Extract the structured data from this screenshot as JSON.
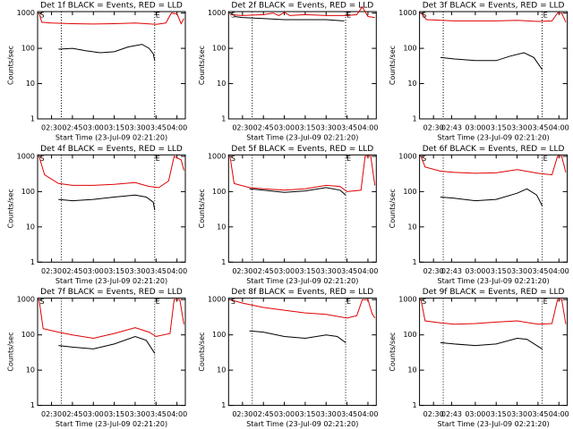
{
  "chart_data": [
    {
      "type": "line",
      "title": "Det 1f BLACK = Events, RED = LLD",
      "ylabel": "Counts/sec",
      "xlabel": "Start Time (23-Jul-09 02:21:20)",
      "log_y": true,
      "ylim": [
        1,
        1100
      ],
      "yticks": [
        1,
        10,
        100,
        1000
      ],
      "xlim": [
        "02:20",
        "04:06"
      ],
      "xticks": [
        "02:30",
        "02:45",
        "03:00",
        "03:15",
        "03:30",
        "03:45",
        "04:00"
      ],
      "vlines": [
        "02:37",
        "03:44"
      ],
      "annotations": [
        {
          "text": "S",
          "x": "02:21"
        },
        {
          "text": "E",
          "x": "03:44"
        }
      ],
      "series": [
        {
          "color": "#e00000",
          "x": [
            "02:21",
            "02:23",
            "02:30",
            "02:45",
            "03:00",
            "03:15",
            "03:30",
            "03:45",
            "03:52",
            "03:56",
            "04:00",
            "04:03",
            "04:05"
          ],
          "values": [
            1000,
            550,
            520,
            500,
            490,
            500,
            520,
            480,
            520,
            1000,
            950,
            500,
            700
          ]
        },
        {
          "color": "#000000",
          "x": [
            "02:35",
            "02:45",
            "02:55",
            "03:05",
            "03:15",
            "03:25",
            "03:35",
            "03:40",
            "03:43",
            "03:44"
          ],
          "values": [
            95,
            100,
            85,
            75,
            80,
            110,
            130,
            100,
            70,
            45
          ]
        }
      ]
    },
    {
      "type": "line",
      "title": "Det 2f BLACK = Events, RED = LLD",
      "ylabel": "Counts/sec",
      "xlabel": "Start Time (23-Jul-09 02:21:20)",
      "log_y": true,
      "ylim": [
        1,
        1100
      ],
      "yticks": [
        1,
        10,
        100,
        1000
      ],
      "xlim": [
        "02:20",
        "04:06"
      ],
      "xticks": [
        "02:30",
        "02:45",
        "03:00",
        "03:15",
        "03:30",
        "03:45",
        "04:00"
      ],
      "vlines": [
        "02:37",
        "03:44"
      ],
      "annotations": [
        {
          "text": "S",
          "x": "02:21"
        },
        {
          "text": "E",
          "x": "03:44"
        }
      ],
      "series": [
        {
          "color": "#e00000",
          "x": [
            "02:21",
            "02:30",
            "02:45",
            "02:52",
            "02:56",
            "03:00",
            "03:04",
            "03:15",
            "03:30",
            "03:45",
            "03:52",
            "03:56",
            "04:00",
            "04:05"
          ],
          "values": [
            900,
            850,
            900,
            1000,
            850,
            1050,
            850,
            900,
            850,
            850,
            900,
            1500,
            800,
            750
          ]
        },
        {
          "color": "#000000",
          "x": [
            "02:24",
            "02:30",
            "02:45",
            "03:00",
            "03:15",
            "03:30",
            "03:43"
          ],
          "values": [
            800,
            750,
            700,
            650,
            650,
            650,
            600
          ]
        }
      ]
    },
    {
      "type": "line",
      "title": "Det 3f BLACK = Events, RED = LLD",
      "ylabel": "Counts/sec",
      "xlabel": "Start Time (23-Jul-09 02:21:20)",
      "log_y": true,
      "ylim": [
        1,
        1100
      ],
      "yticks": [
        1,
        10,
        100,
        1000
      ],
      "xlim": [
        "02:20",
        "04:06"
      ],
      "xticks": [
        "02:30",
        "02:43",
        "03:00",
        "03:15",
        "03:30",
        "03:45",
        "04:00"
      ],
      "vlines": [
        "02:37",
        "03:48"
      ],
      "annotations": [
        {
          "text": "S",
          "x": "02:21"
        },
        {
          "text": "E",
          "x": "03:48"
        }
      ],
      "series": [
        {
          "color": "#e00000",
          "x": [
            "02:21",
            "02:25",
            "02:45",
            "03:00",
            "03:15",
            "03:30",
            "03:45",
            "03:55",
            "03:59",
            "04:02",
            "04:05"
          ],
          "values": [
            1000,
            650,
            600,
            600,
            600,
            620,
            580,
            600,
            1000,
            1000,
            550
          ]
        },
        {
          "color": "#000000",
          "x": [
            "02:35",
            "02:45",
            "03:00",
            "03:15",
            "03:25",
            "03:35",
            "03:42",
            "03:48"
          ],
          "values": [
            55,
            50,
            45,
            45,
            60,
            75,
            55,
            25
          ]
        }
      ]
    },
    {
      "type": "line",
      "title": "Det 4f BLACK = Events, RED = LLD",
      "ylabel": "Counts/sec",
      "xlabel": "Start Time (23-Jul-09 02:21:20)",
      "log_y": true,
      "ylim": [
        1,
        1100
      ],
      "yticks": [
        1,
        10,
        100,
        1000
      ],
      "xlim": [
        "02:20",
        "04:06"
      ],
      "xticks": [
        "02:30",
        "02:45",
        "03:00",
        "03:15",
        "03:30",
        "03:45",
        "04:00"
      ],
      "vlines": [
        "02:37",
        "03:44"
      ],
      "annotations": [
        {
          "text": "S",
          "x": "02:21"
        },
        {
          "text": "E",
          "x": "03:44"
        }
      ],
      "series": [
        {
          "color": "#e00000",
          "x": [
            "02:21",
            "02:25",
            "02:35",
            "02:45",
            "03:00",
            "03:15",
            "03:30",
            "03:40",
            "03:47",
            "03:54",
            "03:58",
            "04:03",
            "04:05"
          ],
          "values": [
            1000,
            300,
            170,
            150,
            150,
            160,
            180,
            140,
            130,
            200,
            1000,
            800,
            400
          ]
        },
        {
          "color": "#000000",
          "x": [
            "02:35",
            "02:45",
            "03:00",
            "03:15",
            "03:30",
            "03:38",
            "03:43",
            "03:44"
          ],
          "values": [
            60,
            55,
            60,
            70,
            80,
            70,
            50,
            30
          ]
        }
      ]
    },
    {
      "type": "line",
      "title": "Det 5f BLACK = Events, RED = LLD",
      "ylabel": "Counts/sec",
      "xlabel": "Start Time (23-Jul-09 02:21:20)",
      "log_y": true,
      "ylim": [
        1,
        1100
      ],
      "yticks": [
        1,
        10,
        100,
        1000
      ],
      "xlim": [
        "02:20",
        "04:06"
      ],
      "xticks": [
        "02:30",
        "02:45",
        "03:00",
        "03:15",
        "03:30",
        "03:45",
        "04:00"
      ],
      "vlines": [
        "02:37",
        "03:44"
      ],
      "annotations": [
        {
          "text": "S",
          "x": "02:21"
        },
        {
          "text": "E",
          "x": "03:44"
        }
      ],
      "series": [
        {
          "color": "#e00000",
          "x": [
            "02:21",
            "02:24",
            "02:35",
            "02:45",
            "03:00",
            "03:15",
            "03:30",
            "03:40",
            "03:45",
            "03:55",
            "03:58",
            "04:02",
            "04:05"
          ],
          "values": [
            1000,
            170,
            130,
            120,
            110,
            120,
            150,
            140,
            100,
            110,
            1000,
            1000,
            150
          ]
        },
        {
          "color": "#000000",
          "x": [
            "02:35",
            "02:45",
            "03:00",
            "03:15",
            "03:30",
            "03:40",
            "03:44"
          ],
          "values": [
            120,
            110,
            95,
            105,
            130,
            110,
            80
          ]
        }
      ]
    },
    {
      "type": "line",
      "title": "Det 6f BLACK = Events, RED = LLD",
      "ylabel": "Counts/sec",
      "xlabel": "Start Time (23-Jul-09 02:21:20)",
      "log_y": true,
      "ylim": [
        1,
        1100
      ],
      "yticks": [
        1,
        10,
        100,
        1000
      ],
      "xlim": [
        "02:20",
        "04:06"
      ],
      "xticks": [
        "02:30",
        "02:43",
        "03:00",
        "03:15",
        "03:30",
        "03:45",
        "04:00"
      ],
      "vlines": [
        "02:37",
        "03:48"
      ],
      "annotations": [
        {
          "text": "S",
          "x": "02:21"
        },
        {
          "text": "E",
          "x": "03:48"
        }
      ],
      "series": [
        {
          "color": "#e00000",
          "x": [
            "02:21",
            "02:24",
            "02:35",
            "02:45",
            "03:00",
            "03:15",
            "03:30",
            "03:45",
            "03:55",
            "03:59",
            "04:02",
            "04:05"
          ],
          "values": [
            1000,
            500,
            380,
            350,
            330,
            340,
            420,
            330,
            300,
            1000,
            1000,
            350
          ]
        },
        {
          "color": "#000000",
          "x": [
            "02:35",
            "02:45",
            "03:00",
            "03:15",
            "03:30",
            "03:37",
            "03:44",
            "03:48"
          ],
          "values": [
            70,
            65,
            55,
            60,
            90,
            120,
            80,
            40
          ]
        }
      ]
    },
    {
      "type": "line",
      "title": "Det 7f BLACK = Events, RED = LLD",
      "ylabel": "Counts/sec",
      "xlabel": "Start Time (23-Jul-09 02:21:20)",
      "log_y": true,
      "ylim": [
        1,
        1100
      ],
      "yticks": [
        1,
        10,
        100,
        1000
      ],
      "xlim": [
        "02:20",
        "04:06"
      ],
      "xticks": [
        "02:30",
        "02:45",
        "03:00",
        "03:15",
        "03:30",
        "03:45",
        "04:00"
      ],
      "vlines": [
        "02:37",
        "03:44"
      ],
      "annotations": [
        {
          "text": "S",
          "x": "02:21"
        },
        {
          "text": "E",
          "x": "03:44"
        }
      ],
      "series": [
        {
          "color": "#e00000",
          "x": [
            "02:21",
            "02:24",
            "02:35",
            "02:45",
            "03:00",
            "03:15",
            "03:30",
            "03:40",
            "03:45",
            "03:55",
            "03:58",
            "04:02",
            "04:05"
          ],
          "values": [
            1000,
            150,
            120,
            100,
            80,
            110,
            160,
            120,
            90,
            110,
            1000,
            1000,
            200
          ]
        },
        {
          "color": "#000000",
          "x": [
            "02:35",
            "02:45",
            "03:00",
            "03:15",
            "03:30",
            "03:38",
            "03:44"
          ],
          "values": [
            50,
            45,
            40,
            55,
            90,
            70,
            30
          ]
        }
      ]
    },
    {
      "type": "line",
      "title": "Det 8f BLACK = Events, RED = LLD",
      "ylabel": "Counts/sec",
      "xlabel": "Start Time (23-Jul-09 02:21:20)",
      "log_y": true,
      "ylim": [
        1,
        1100
      ],
      "yticks": [
        1,
        10,
        100,
        1000
      ],
      "xlim": [
        "02:20",
        "04:06"
      ],
      "xticks": [
        "02:30",
        "02:45",
        "03:00",
        "03:15",
        "03:30",
        "03:45",
        "04:00"
      ],
      "vlines": [
        "02:37",
        "03:44"
      ],
      "annotations": [
        {
          "text": "S",
          "x": "02:21"
        },
        {
          "text": "E",
          "x": "03:44"
        }
      ],
      "series": [
        {
          "color": "#e00000",
          "x": [
            "02:21",
            "02:30",
            "02:45",
            "03:00",
            "03:15",
            "03:30",
            "03:45",
            "03:52",
            "03:56",
            "04:00",
            "04:03",
            "04:05"
          ],
          "values": [
            1000,
            800,
            600,
            500,
            420,
            380,
            300,
            350,
            1000,
            1000,
            400,
            300
          ]
        },
        {
          "color": "#000000",
          "x": [
            "02:35",
            "02:45",
            "03:00",
            "03:15",
            "03:30",
            "03:38",
            "03:44"
          ],
          "values": [
            130,
            120,
            90,
            80,
            100,
            90,
            60
          ]
        }
      ]
    },
    {
      "type": "line",
      "title": "Det 9f BLACK = Events, RED = LLD",
      "ylabel": "Counts/sec",
      "xlabel": "Start Time (23-Jul-09 02:21:20)",
      "log_y": true,
      "ylim": [
        1,
        1100
      ],
      "yticks": [
        1,
        10,
        100,
        1000
      ],
      "xlim": [
        "02:20",
        "04:06"
      ],
      "xticks": [
        "02:30",
        "02:43",
        "03:00",
        "03:15",
        "03:30",
        "03:45",
        "04:00"
      ],
      "vlines": [
        "02:37",
        "03:48"
      ],
      "annotations": [
        {
          "text": "S",
          "x": "02:21"
        },
        {
          "text": "E",
          "x": "03:48"
        }
      ],
      "series": [
        {
          "color": "#e00000",
          "x": [
            "02:21",
            "02:24",
            "02:35",
            "02:45",
            "03:00",
            "03:15",
            "03:30",
            "03:45",
            "03:55",
            "03:59",
            "04:02",
            "04:05"
          ],
          "values": [
            1000,
            250,
            220,
            200,
            210,
            230,
            250,
            200,
            210,
            1000,
            1000,
            200
          ]
        },
        {
          "color": "#000000",
          "x": [
            "02:35",
            "02:45",
            "03:00",
            "03:15",
            "03:30",
            "03:37",
            "03:44",
            "03:48"
          ],
          "values": [
            60,
            55,
            50,
            55,
            80,
            75,
            50,
            40
          ]
        }
      ]
    }
  ]
}
